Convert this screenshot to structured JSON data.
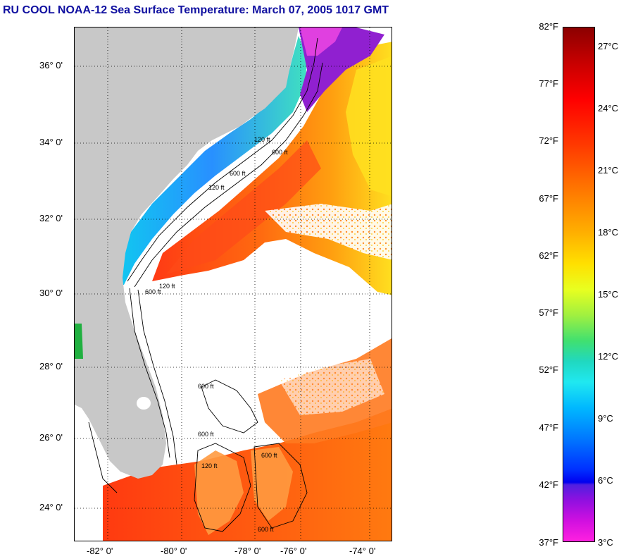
{
  "title": "RU COOL  NOAA-12  Sea Surface Temperature:  March 07, 2005 1017 GMT",
  "latitude_labels": [
    "36° 0'",
    "34° 0'",
    "32° 0'",
    "30° 0'",
    "28° 0'",
    "26° 0'",
    "24° 0'"
  ],
  "longitude_labels": [
    "-82° 0'",
    "-80° 0'",
    "-78° 0'",
    "-76° 0'",
    "-74° 0'"
  ],
  "contour_labels": [
    "120 ft",
    "600 ft",
    "120 ft",
    "600 ft",
    "600 ft",
    "120 ft",
    "600 ft",
    "600 ft",
    "120 ft",
    "600 ft",
    "600 ft"
  ],
  "colorbar": {
    "fahrenheit_labels": [
      "82°F",
      "77°F",
      "72°F",
      "67°F",
      "62°F",
      "57°F",
      "52°F",
      "47°F",
      "42°F",
      "37°F"
    ],
    "celsius_labels": [
      "27°C",
      "24°C",
      "21°C",
      "18°C",
      "15°C",
      "12°C",
      "9°C",
      "6°C",
      "3°C"
    ]
  },
  "colors": {
    "land": "#c8c8c8",
    "cloud": "#ffffff",
    "warm_gulf_stream": "#ff5a14",
    "shelf_cold": "#28a0ff",
    "title": "#1010a0"
  }
}
